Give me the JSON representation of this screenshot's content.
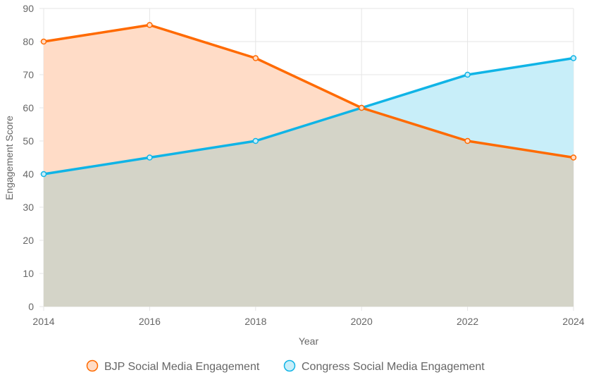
{
  "chart_data": {
    "type": "area",
    "x": [
      2014,
      2016,
      2018,
      2020,
      2022,
      2024
    ],
    "series": [
      {
        "name": "BJP Social Media Engagement",
        "values": [
          80,
          85,
          75,
          60,
          50,
          45
        ],
        "line_color": "#ff6a00",
        "fill_color": "#ffdcc7"
      },
      {
        "name": "Congress Social Media Engagement",
        "values": [
          40,
          45,
          50,
          60,
          70,
          75
        ],
        "line_color": "#10b4e6",
        "fill_color": "#c8eef9"
      }
    ],
    "overlap_fill_color": "#d4d4c8",
    "xlabel": "Year",
    "ylabel": "Engagement Score",
    "ylim": [
      0,
      90
    ],
    "yticks": [
      0,
      10,
      20,
      30,
      40,
      50,
      60,
      70,
      80,
      90
    ],
    "xticks": [
      "2014",
      "2016",
      "2018",
      "2020",
      "2022",
      "2024"
    ],
    "grid": true,
    "legend_position": "bottom"
  }
}
